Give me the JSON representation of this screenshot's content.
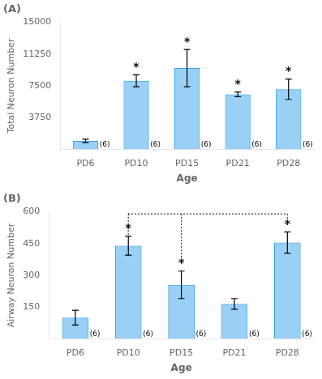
{
  "chart_data": [
    {
      "type": "bar",
      "title": "(A)",
      "categories": [
        "PD6",
        "PD10",
        "PD15",
        "PD21",
        "PD28"
      ],
      "values": [
        1000,
        8100,
        9600,
        6500,
        7100
      ],
      "errors": [
        200,
        700,
        2200,
        280,
        1200
      ],
      "xlabel": "Age",
      "ylabel": "Total Neuron Number",
      "ylim": [
        0,
        15000
      ],
      "yticks": [
        3750,
        7500,
        11250,
        15000
      ],
      "grid": false,
      "annotations": [
        {
          "text": "*",
          "category": "PD10"
        },
        {
          "text": "*",
          "category": "PD15"
        },
        {
          "text": "*",
          "category": "PD21"
        },
        {
          "text": "*",
          "category": "PD28"
        }
      ],
      "n_labels": [
        "(6)",
        "(6)",
        "(6)",
        "(6)",
        "(6)"
      ]
    },
    {
      "type": "bar",
      "title": "(B)",
      "categories": [
        "PD6",
        "PD10",
        "PD15",
        "PD21",
        "PD28"
      ],
      "values": [
        100,
        440,
        255,
        165,
        455
      ],
      "errors": [
        35,
        45,
        65,
        25,
        50
      ],
      "xlabel": "Age",
      "ylabel": "Airway Neuron Number",
      "ylim": [
        0,
        600
      ],
      "yticks": [
        150,
        300,
        450,
        600
      ],
      "grid": false,
      "annotations": [
        {
          "text": "*",
          "category": "PD10"
        },
        {
          "text": "*",
          "category": "PD15"
        },
        {
          "text": "*",
          "category": "PD28"
        }
      ],
      "n_labels": [
        "(6)",
        "(6)",
        "(6)",
        "(6)",
        "(6)"
      ],
      "bracket": {
        "categories": [
          "PD10",
          "PD15",
          "PD28"
        ],
        "top": 590,
        "bottoms": [
          490,
          355,
          530
        ]
      }
    }
  ]
}
